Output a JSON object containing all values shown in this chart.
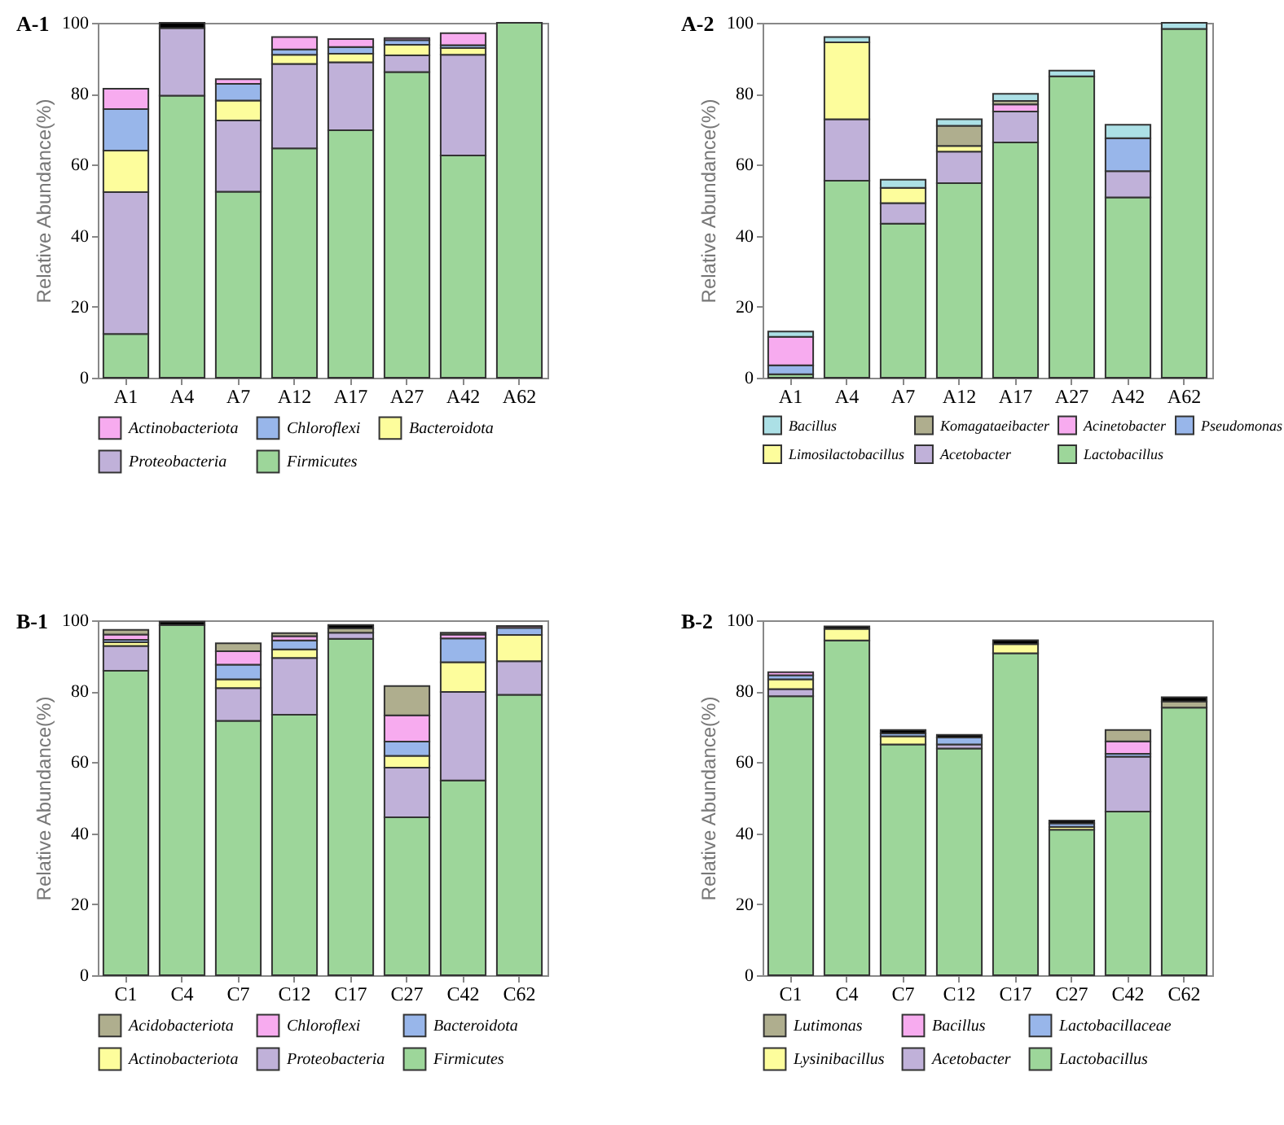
{
  "chart_data": [
    {
      "type": "bar",
      "title": "A-1",
      "stacked": true,
      "ylabel": "Relative Abundance(%)",
      "categories": [
        "A1",
        "A4",
        "A7",
        "A12",
        "A17",
        "A27",
        "A42",
        "A62"
      ],
      "ylim": [
        0,
        100
      ],
      "yticks": [
        0,
        20,
        40,
        60,
        80,
        100
      ],
      "legend": "bottom",
      "series": [
        {
          "name": "Firmicutes",
          "color": "#9dd69a",
          "values": [
            12.3,
            79.5,
            52.4,
            64.6,
            69.7,
            86.1,
            62.6,
            100
          ]
        },
        {
          "name": "Proteobacteria",
          "color": "#c0b1d9",
          "values": [
            40,
            19,
            20.1,
            23.8,
            19.2,
            4.7,
            28.4,
            null
          ]
        },
        {
          "name": "Bacteroidota",
          "color": "#fdfd9c",
          "values": [
            11.7,
            null,
            5.6,
            2.6,
            2.4,
            3,
            1.9,
            null
          ]
        },
        {
          "name": "Chloroflexi",
          "color": "#98b6ea",
          "values": [
            11.7,
            null,
            4.7,
            1.5,
            1.9,
            1.3,
            0.8,
            null
          ]
        },
        {
          "name": "Actinobacteriota",
          "color": "#f7abef",
          "values": [
            5.7,
            null,
            1.3,
            3.5,
            2.2,
            0.6,
            3.4,
            null
          ]
        },
        {
          "color": "#000000",
          "values": [
            null,
            1.5,
            null,
            null,
            null,
            null,
            null,
            null
          ]
        }
      ]
    },
    {
      "type": "bar",
      "title": "A-2",
      "stacked": true,
      "ylabel": "Relative Abundance(%)",
      "categories": [
        "A1",
        "A4",
        "A7",
        "A12",
        "A17",
        "A27",
        "A42",
        "A62"
      ],
      "ylim": [
        0,
        100
      ],
      "yticks": [
        0,
        20,
        40,
        60,
        80,
        100
      ],
      "legend": "bottom",
      "series": [
        {
          "name": "Lactobacillus",
          "color": "#9dd69a",
          "values": [
            1,
            55.5,
            43.4,
            54.8,
            66.3,
            84.9,
            50.8,
            98.3
          ]
        },
        {
          "name": "Acetobacter",
          "color": "#c0b1d9",
          "values": [
            null,
            17.3,
            5.8,
            8.9,
            8.7,
            null,
            7.4,
            null
          ]
        },
        {
          "name": "Limosilactobacillus",
          "color": "#fdfd9c",
          "values": [
            null,
            21.7,
            4.3,
            1.6,
            null,
            null,
            null,
            null
          ]
        },
        {
          "name": "Pseudomonas",
          "color": "#98b6ea",
          "values": [
            2.5,
            null,
            null,
            null,
            null,
            null,
            9.3,
            null
          ]
        },
        {
          "name": "Acinetobacter",
          "color": "#f7abef",
          "values": [
            8,
            null,
            null,
            null,
            2,
            null,
            null,
            null
          ]
        },
        {
          "name": "Komagataeibacter",
          "color": "#afae8e",
          "values": [
            null,
            null,
            null,
            5.7,
            1,
            null,
            null,
            null
          ]
        },
        {
          "name": "Bacillus",
          "color": "#ace0e6",
          "values": [
            1.5,
            1.5,
            2.3,
            1.8,
            2,
            1.6,
            3.8,
            1.7
          ]
        }
      ]
    },
    {
      "type": "bar",
      "title": "B-1",
      "stacked": true,
      "ylabel": "Relative Abundance(%)",
      "categories": [
        "C1",
        "C4",
        "C7",
        "C12",
        "C17",
        "C27",
        "C42",
        "C62"
      ],
      "ylim": [
        0,
        100
      ],
      "yticks": [
        0,
        20,
        40,
        60,
        80,
        100
      ],
      "legend": "bottom",
      "series": [
        {
          "name": "Firmicutes",
          "color": "#9dd69a",
          "values": [
            85.8,
            98.7,
            71.7,
            73.4,
            94.8,
            44.5,
            54.9,
            79
          ]
        },
        {
          "name": "Proteobacteria",
          "color": "#c0b1d9",
          "values": [
            7,
            null,
            9.2,
            16,
            1.7,
            14,
            24.9,
            9.5
          ]
        },
        {
          "name": "Actinobacteriota",
          "color": "#fdfd9c",
          "values": [
            1,
            null,
            2.5,
            2.4,
            null,
            3.3,
            8.4,
            7.4
          ]
        },
        {
          "name": "Bacteroidota",
          "color": "#98b6ea",
          "values": [
            0.7,
            null,
            4.1,
            2.5,
            null,
            4,
            6.7,
            2
          ]
        },
        {
          "name": "Chloroflexi",
          "color": "#f7abef",
          "values": [
            1.5,
            null,
            3.8,
            1.2,
            null,
            7.4,
            1.1,
            0.5
          ]
        },
        {
          "name": "Acidobacteriota",
          "color": "#afae8e",
          "values": [
            1.3,
            null,
            2.2,
            0.9,
            1.2,
            8.3,
            0.5,
            null
          ]
        },
        {
          "color": "#000000",
          "values": [
            null,
            0.9,
            null,
            null,
            1,
            null,
            null,
            null
          ]
        }
      ]
    },
    {
      "type": "bar",
      "title": "B-2",
      "stacked": true,
      "ylabel": "Relative Abundance(%)",
      "categories": [
        "C1",
        "C4",
        "C7",
        "C12",
        "C17",
        "C27",
        "C42",
        "C62"
      ],
      "ylim": [
        0,
        100
      ],
      "yticks": [
        0,
        20,
        40,
        60,
        80,
        100
      ],
      "legend": "bottom",
      "series": [
        {
          "name": "Lactobacillus",
          "color": "#9dd69a",
          "values": [
            78.6,
            94.3,
            65,
            63.9,
            90.7,
            41,
            46.1,
            75.4
          ]
        },
        {
          "name": "Acetobacter",
          "color": "#c0b1d9",
          "values": [
            2,
            null,
            null,
            1.1,
            null,
            null,
            15.5,
            null
          ]
        },
        {
          "name": "Lysinibacillus",
          "color": "#fdfd9c",
          "values": [
            2.8,
            3.3,
            2.3,
            null,
            2.6,
            0.8,
            null,
            null
          ]
        },
        {
          "name": "Lactobacillaceae",
          "color": "#98b6ea",
          "values": [
            1.1,
            null,
            0.8,
            2,
            null,
            1,
            0.8,
            null
          ]
        },
        {
          "name": "Bacillus",
          "color": "#f7abef",
          "values": [
            0.9,
            null,
            null,
            null,
            null,
            null,
            3.5,
            null
          ]
        },
        {
          "name": "Lutimonas",
          "color": "#afae8e",
          "values": [
            null,
            null,
            null,
            null,
            null,
            null,
            3.2,
            1.7
          ]
        },
        {
          "color": "#000000",
          "values": [
            null,
            0.7,
            1,
            0.7,
            1.1,
            0.8,
            null,
            1.2
          ]
        }
      ]
    }
  ]
}
